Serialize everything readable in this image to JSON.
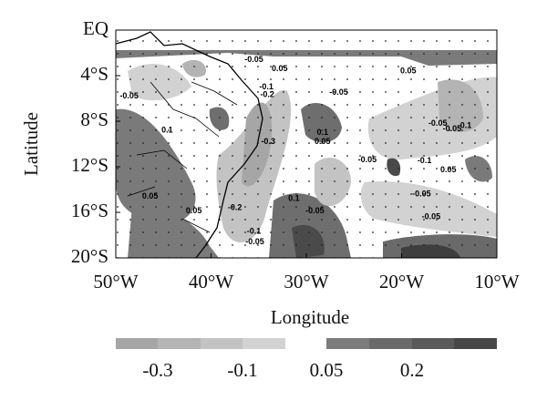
{
  "chart_data": {
    "type": "contour",
    "xlabel": "Longitude",
    "ylabel": "Latitude",
    "xlim": [
      -50,
      -10
    ],
    "ylim": [
      -20,
      0
    ],
    "xticks": [
      {
        "value": -50,
        "label": "50°W"
      },
      {
        "value": -40,
        "label": "40°W"
      },
      {
        "value": -30,
        "label": "30°W"
      },
      {
        "value": -20,
        "label": "20°W"
      },
      {
        "value": -10,
        "label": "10°W"
      }
    ],
    "yticks": [
      {
        "value": 0,
        "label": "EQ"
      },
      {
        "value": -4,
        "label": "4°S"
      },
      {
        "value": -8,
        "label": "8°S"
      },
      {
        "value": -12,
        "label": "12°S"
      },
      {
        "value": -16,
        "label": "16°S"
      },
      {
        "value": -20,
        "label": "20°S"
      }
    ],
    "contour_labels": {
      "x": [
        -35.5,
        -32.8,
        -48.6,
        -34.2,
        -34.1,
        -26.6,
        -19.3,
        -44.6,
        -34.0,
        -28.3,
        -28.3,
        -16.2,
        -14.7,
        -13.4,
        -23.6,
        -17.6,
        -15.1,
        -17.9,
        -46.4,
        -41.8,
        -37.5,
        -31.3,
        -29.1,
        -16.9,
        -35.5,
        -35.4
      ],
      "y": [
        -2.6,
        -3.4,
        -5.8,
        -5.0,
        -5.7,
        -5.5,
        -3.6,
        -8.8,
        -9.8,
        -9.0,
        -9.8,
        -8.2,
        -8.7,
        -8.4,
        -11.4,
        -11.5,
        -12.3,
        -14.4,
        -14.6,
        -15.9,
        -15.6,
        -14.8,
        -15.9,
        -16.4,
        -17.7,
        -18.6
      ],
      "values": [
        -0.05,
        0.05,
        -0.05,
        -0.1,
        -0.2,
        -0.05,
        0.05,
        0.1,
        -0.3,
        0.1,
        0.05,
        -0.05,
        -0.05,
        -0.1,
        -0.05,
        -0.1,
        0.05,
        -0.05,
        0.05,
        0.05,
        -0.2,
        0.1,
        -0.05,
        -0.05,
        -0.1,
        -0.05
      ]
    },
    "colorbar": {
      "colors": [
        "#a6a6a6",
        "#b4b4b4",
        "#c3c3c3",
        "#d2d2d2",
        "#7c7c7c",
        "#6a6a6a",
        "#595959",
        "#474747"
      ],
      "ticks": [
        -0.3,
        -0.1,
        0.05,
        0.2
      ]
    }
  }
}
